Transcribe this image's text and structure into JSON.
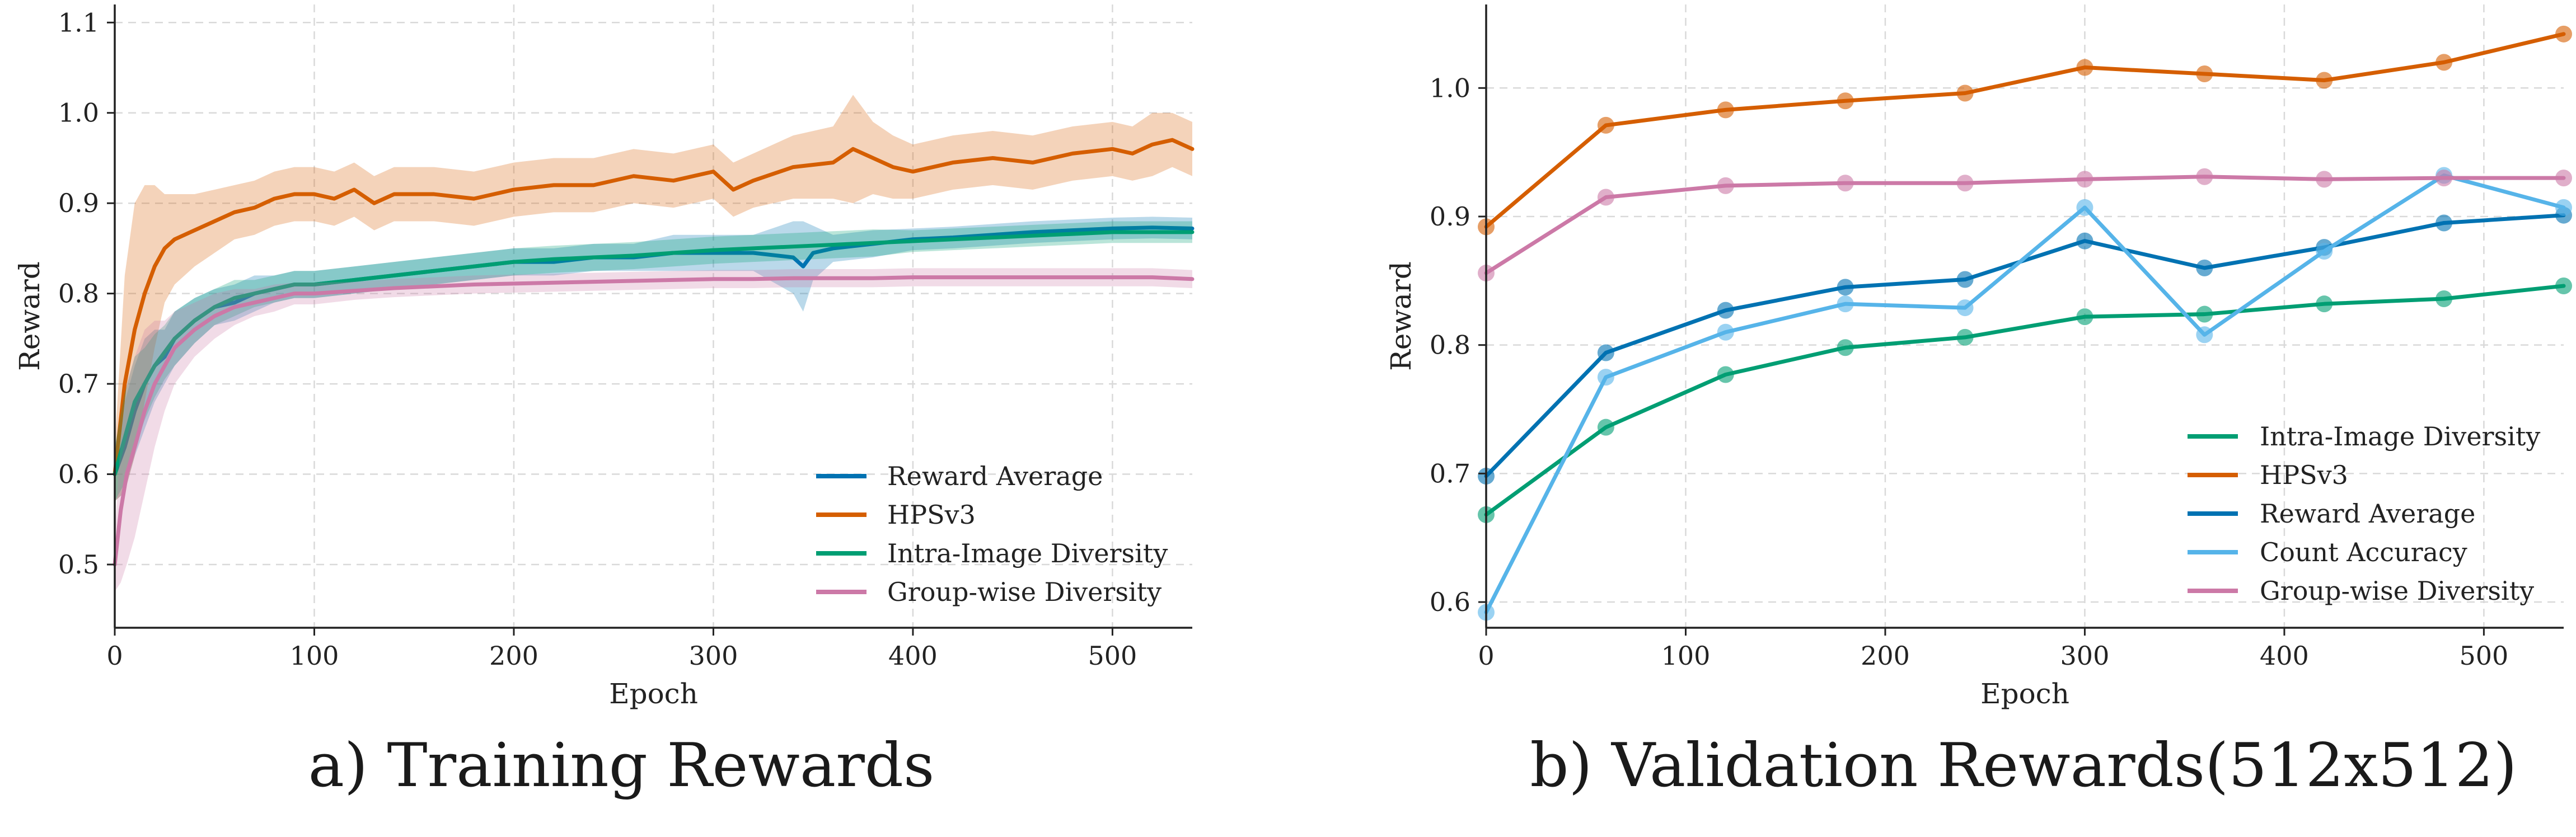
{
  "chart_data": [
    {
      "type": "line",
      "caption": "a) Training Rewards",
      "xlabel": "Epoch",
      "ylabel": "Reward",
      "xlim": [
        0,
        540
      ],
      "ylim": [
        0.43,
        1.12
      ],
      "xticks": [
        0,
        100,
        200,
        300,
        400,
        500
      ],
      "yticks": [
        0.5,
        0.6,
        0.7,
        0.8,
        0.9,
        1.0,
        1.1
      ],
      "grid": true,
      "legend_position": "lower-right",
      "series": [
        {
          "name": "Reward Average",
          "color": "#0072b2",
          "x": [
            0,
            5,
            10,
            15,
            20,
            25,
            30,
            40,
            50,
            60,
            70,
            80,
            90,
            100,
            120,
            140,
            160,
            180,
            200,
            220,
            240,
            260,
            280,
            300,
            320,
            340,
            345,
            350,
            360,
            380,
            400,
            420,
            440,
            460,
            480,
            500,
            520,
            540
          ],
          "values": [
            0.6,
            0.63,
            0.67,
            0.7,
            0.72,
            0.73,
            0.75,
            0.77,
            0.785,
            0.79,
            0.8,
            0.805,
            0.81,
            0.81,
            0.815,
            0.82,
            0.825,
            0.83,
            0.835,
            0.835,
            0.84,
            0.84,
            0.845,
            0.845,
            0.845,
            0.84,
            0.83,
            0.845,
            0.85,
            0.855,
            0.86,
            0.862,
            0.865,
            0.868,
            0.87,
            0.872,
            0.873,
            0.872
          ],
          "band": [
            0.03,
            0.05,
            0.05,
            0.05,
            0.04,
            0.03,
            0.03,
            0.025,
            0.02,
            0.02,
            0.02,
            0.015,
            0.015,
            0.015,
            0.015,
            0.015,
            0.015,
            0.015,
            0.015,
            0.015,
            0.015,
            0.015,
            0.02,
            0.02,
            0.02,
            0.04,
            0.05,
            0.03,
            0.015,
            0.015,
            0.012,
            0.012,
            0.012,
            0.012,
            0.012,
            0.012,
            0.012,
            0.012
          ]
        },
        {
          "name": "HPSv3",
          "color": "#d55e00",
          "x": [
            0,
            5,
            10,
            15,
            20,
            25,
            30,
            40,
            50,
            60,
            70,
            80,
            90,
            100,
            110,
            120,
            130,
            140,
            160,
            180,
            200,
            220,
            240,
            260,
            280,
            300,
            310,
            320,
            340,
            360,
            370,
            380,
            390,
            400,
            420,
            440,
            460,
            480,
            500,
            510,
            520,
            530,
            540
          ],
          "values": [
            0.6,
            0.7,
            0.76,
            0.8,
            0.83,
            0.85,
            0.86,
            0.87,
            0.88,
            0.89,
            0.895,
            0.905,
            0.91,
            0.91,
            0.905,
            0.915,
            0.9,
            0.91,
            0.91,
            0.905,
            0.915,
            0.92,
            0.92,
            0.93,
            0.925,
            0.935,
            0.915,
            0.925,
            0.94,
            0.945,
            0.96,
            0.95,
            0.94,
            0.935,
            0.945,
            0.95,
            0.945,
            0.955,
            0.96,
            0.955,
            0.965,
            0.97,
            0.96
          ],
          "band": [
            0.03,
            0.12,
            0.14,
            0.12,
            0.09,
            0.06,
            0.05,
            0.04,
            0.035,
            0.03,
            0.03,
            0.03,
            0.03,
            0.03,
            0.03,
            0.03,
            0.03,
            0.03,
            0.03,
            0.03,
            0.03,
            0.03,
            0.03,
            0.03,
            0.03,
            0.03,
            0.03,
            0.03,
            0.035,
            0.04,
            0.06,
            0.04,
            0.035,
            0.03,
            0.03,
            0.03,
            0.03,
            0.03,
            0.03,
            0.03,
            0.035,
            0.03,
            0.03
          ]
        },
        {
          "name": "Intra-Image Diversity",
          "color": "#009e73",
          "x": [
            0,
            5,
            10,
            15,
            20,
            25,
            30,
            40,
            50,
            60,
            70,
            80,
            90,
            100,
            120,
            140,
            160,
            180,
            200,
            220,
            240,
            260,
            280,
            300,
            320,
            340,
            360,
            380,
            400,
            420,
            440,
            460,
            480,
            500,
            520,
            540
          ],
          "values": [
            0.6,
            0.64,
            0.68,
            0.7,
            0.72,
            0.735,
            0.75,
            0.77,
            0.785,
            0.795,
            0.8,
            0.805,
            0.81,
            0.81,
            0.815,
            0.82,
            0.825,
            0.83,
            0.835,
            0.838,
            0.84,
            0.842,
            0.845,
            0.848,
            0.85,
            0.852,
            0.854,
            0.856,
            0.858,
            0.86,
            0.862,
            0.864,
            0.866,
            0.868,
            0.868,
            0.868
          ],
          "band": [
            0.03,
            0.05,
            0.05,
            0.04,
            0.035,
            0.03,
            0.03,
            0.025,
            0.02,
            0.02,
            0.015,
            0.015,
            0.015,
            0.015,
            0.015,
            0.015,
            0.015,
            0.015,
            0.015,
            0.015,
            0.015,
            0.015,
            0.015,
            0.015,
            0.015,
            0.015,
            0.015,
            0.015,
            0.012,
            0.012,
            0.012,
            0.012,
            0.012,
            0.012,
            0.012,
            0.012
          ]
        },
        {
          "name": "Group-wise Diversity",
          "color": "#cc79a7",
          "x": [
            0,
            3,
            6,
            10,
            15,
            20,
            25,
            30,
            40,
            50,
            60,
            70,
            80,
            90,
            100,
            120,
            140,
            160,
            180,
            200,
            220,
            240,
            260,
            280,
            300,
            320,
            340,
            360,
            380,
            400,
            420,
            440,
            460,
            480,
            500,
            520,
            540
          ],
          "values": [
            0.5,
            0.56,
            0.6,
            0.63,
            0.67,
            0.7,
            0.72,
            0.74,
            0.76,
            0.775,
            0.785,
            0.79,
            0.795,
            0.8,
            0.8,
            0.803,
            0.806,
            0.808,
            0.81,
            0.811,
            0.812,
            0.813,
            0.814,
            0.815,
            0.816,
            0.816,
            0.817,
            0.817,
            0.817,
            0.818,
            0.818,
            0.818,
            0.818,
            0.818,
            0.818,
            0.818,
            0.816
          ],
          "band": [
            0.03,
            0.08,
            0.1,
            0.1,
            0.09,
            0.07,
            0.05,
            0.04,
            0.03,
            0.025,
            0.02,
            0.015,
            0.015,
            0.012,
            0.012,
            0.01,
            0.01,
            0.01,
            0.01,
            0.01,
            0.01,
            0.01,
            0.01,
            0.01,
            0.01,
            0.01,
            0.01,
            0.01,
            0.01,
            0.01,
            0.01,
            0.01,
            0.01,
            0.01,
            0.01,
            0.01,
            0.01
          ]
        }
      ]
    },
    {
      "type": "line",
      "caption": "b) Validation Rewards(512x512)",
      "xlabel": "Epoch",
      "ylabel": "Reward",
      "xlim": [
        0,
        540
      ],
      "ylim": [
        0.58,
        1.065
      ],
      "xticks": [
        0,
        100,
        200,
        300,
        400,
        500
      ],
      "yticks": [
        0.6,
        0.7,
        0.8,
        0.9,
        1.0
      ],
      "grid": true,
      "legend_position": "lower-right",
      "series": [
        {
          "name": "Intra-Image Diversity",
          "color": "#009e73",
          "x": [
            0,
            60,
            120,
            180,
            240,
            300,
            360,
            420,
            480,
            540
          ],
          "values": [
            0.668,
            0.736,
            0.777,
            0.798,
            0.806,
            0.822,
            0.824,
            0.832,
            0.836,
            0.846
          ]
        },
        {
          "name": "HPSv3",
          "color": "#d55e00",
          "x": [
            0,
            60,
            120,
            180,
            240,
            300,
            360,
            420,
            480,
            540
          ],
          "values": [
            0.892,
            0.971,
            0.983,
            0.99,
            0.996,
            1.016,
            1.011,
            1.006,
            1.02,
            1.042
          ]
        },
        {
          "name": "Reward Average",
          "color": "#0072b2",
          "x": [
            0,
            60,
            120,
            180,
            240,
            300,
            360,
            420,
            480,
            540
          ],
          "values": [
            0.698,
            0.794,
            0.827,
            0.845,
            0.851,
            0.881,
            0.86,
            0.876,
            0.895,
            0.901
          ]
        },
        {
          "name": "Count Accuracy",
          "color": "#56b4e9",
          "x": [
            0,
            60,
            120,
            180,
            240,
            300,
            360,
            420,
            480,
            540
          ],
          "values": [
            0.592,
            0.775,
            0.81,
            0.832,
            0.829,
            0.907,
            0.808,
            0.873,
            0.932,
            0.907
          ]
        },
        {
          "name": "Group-wise Diversity",
          "color": "#cc79a7",
          "x": [
            0,
            60,
            120,
            180,
            240,
            300,
            360,
            420,
            480,
            540
          ],
          "values": [
            0.856,
            0.915,
            0.924,
            0.926,
            0.926,
            0.929,
            0.931,
            0.929,
            0.93,
            0.93
          ]
        }
      ]
    }
  ]
}
